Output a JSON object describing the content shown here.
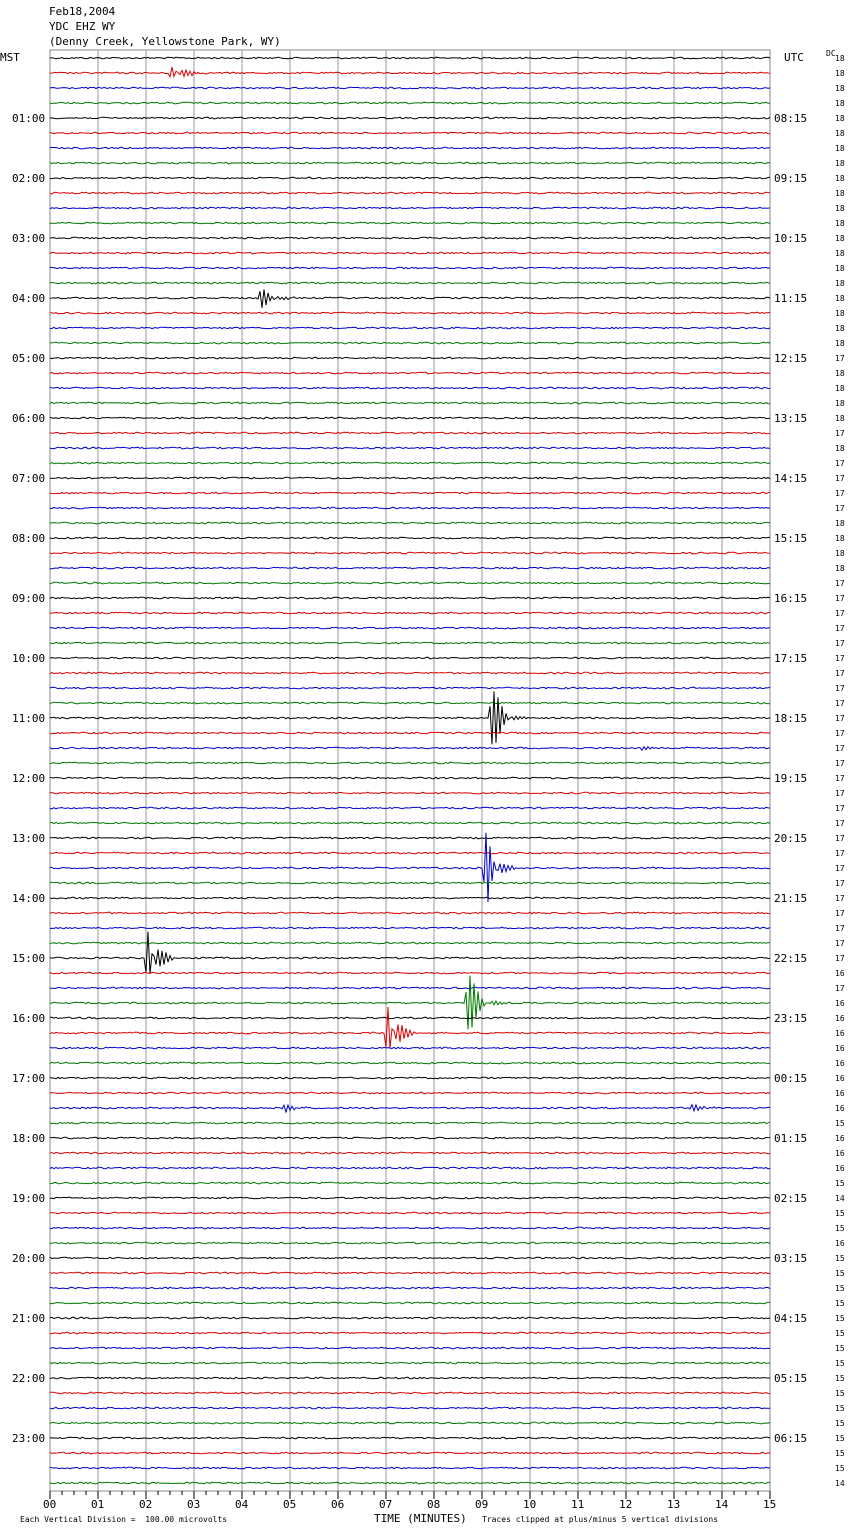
{
  "header": {
    "date": "Feb18,2004",
    "station": "YDC EHZ WY",
    "location": "(Denny Creek, Yellowstone Park, WY)"
  },
  "chart_data": {
    "type": "line",
    "title": "",
    "left_timezone": "MST",
    "right_timezone": "UTC",
    "right_column_header": "DC",
    "xlabel": "TIME (MINUTES)",
    "xlim": [
      0,
      15
    ],
    "x_ticks": [
      "00",
      "01",
      "02",
      "03",
      "04",
      "05",
      "06",
      "07",
      "08",
      "09",
      "10",
      "11",
      "12",
      "13",
      "14",
      "15"
    ],
    "rows_per_hour": 4,
    "row_count": 96,
    "trace_colors": [
      "#000000",
      "#dd0000",
      "#0000cc",
      "#007700"
    ],
    "mst_labels": [
      "01:00",
      "02:00",
      "03:00",
      "04:00",
      "05:00",
      "06:00",
      "07:00",
      "08:00",
      "09:00",
      "10:00",
      "11:00",
      "12:00",
      "13:00",
      "14:00",
      "15:00",
      "16:00",
      "17:00",
      "18:00",
      "19:00",
      "20:00",
      "21:00",
      "22:00",
      "23:00"
    ],
    "utc_labels": [
      "08:15",
      "09:15",
      "10:15",
      "11:15",
      "12:15",
      "13:15",
      "14:15",
      "15:15",
      "16:15",
      "17:15",
      "18:15",
      "19:15",
      "20:15",
      "21:15",
      "22:15",
      "23:15",
      "00:15",
      "01:15",
      "02:15",
      "03:15",
      "04:15",
      "05:15",
      "06:15"
    ],
    "right_column_values": [
      "18",
      "18",
      "18",
      "18",
      "18",
      "18",
      "18",
      "18",
      "18",
      "18",
      "18",
      "18",
      "18",
      "18",
      "18",
      "18",
      "18",
      "18",
      "18",
      "18",
      "17",
      "18",
      "18",
      "18",
      "18",
      "17",
      "18",
      "17",
      "17",
      "17",
      "17",
      "18",
      "18",
      "18",
      "18",
      "17",
      "17",
      "17",
      "17",
      "17",
      "17",
      "17",
      "17",
      "17",
      "17",
      "17",
      "17",
      "17",
      "17",
      "17",
      "17",
      "17",
      "17",
      "17",
      "17",
      "17",
      "17",
      "17",
      "17",
      "17",
      "17",
      "16",
      "17",
      "16",
      "16",
      "16",
      "16",
      "16",
      "16",
      "16",
      "16",
      "15",
      "16",
      "16",
      "16",
      "15",
      "14",
      "15",
      "15",
      "16",
      "15",
      "15",
      "15",
      "15",
      "15",
      "15",
      "15",
      "15",
      "15",
      "15",
      "15",
      "15",
      "15",
      "15",
      "15",
      "14"
    ],
    "events": [
      {
        "row": 1,
        "minute": 2.55,
        "amplitude": "medium"
      },
      {
        "row": 16,
        "minute": 4.4,
        "amplitude": "medium"
      },
      {
        "row": 46,
        "minute": 12.25,
        "amplitude": "small"
      },
      {
        "row": 44,
        "minute": 9.2,
        "amplitude": "large"
      },
      {
        "row": 54,
        "minute": 9.1,
        "amplitude": "large"
      },
      {
        "row": 60,
        "minute": 2.05,
        "amplitude": "large"
      },
      {
        "row": 63,
        "minute": 8.7,
        "amplitude": "large"
      },
      {
        "row": 65,
        "minute": 7.05,
        "amplitude": "large"
      },
      {
        "row": 70,
        "minute": 4.9,
        "amplitude": "small"
      },
      {
        "row": 70,
        "minute": 13.4,
        "amplitude": "small"
      }
    ]
  },
  "footer": {
    "scale_note": "Each Vertical Division =  100.00 microvolts",
    "clip_note": "Traces clipped at plus/minus 5 vertical divisions"
  }
}
